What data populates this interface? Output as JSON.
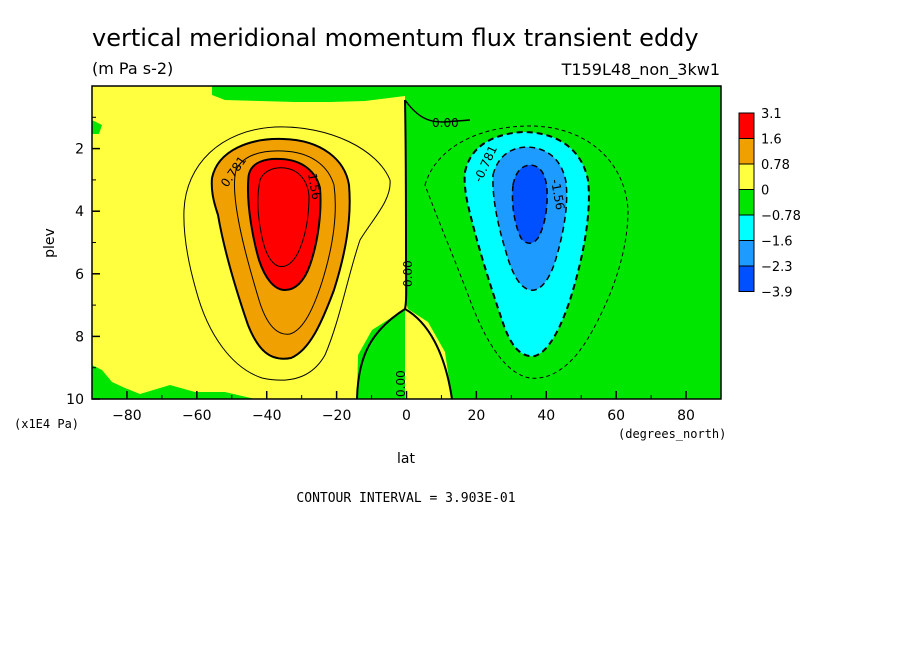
{
  "chart_data": {
    "type": "heatmap",
    "title": "vertical meridional momentum flux transient eddy",
    "subtitle": "(m Pa s-2)",
    "run_label": "T159L48_non_3kw1",
    "xlabel": "lat",
    "xunit": "(degrees_north)",
    "ylabel": "plev",
    "yunit": "(x1E4 Pa)",
    "xlim": [
      -90,
      90
    ],
    "ylim": [
      10,
      0
    ],
    "xticks": [
      -80,
      -60,
      -40,
      -20,
      0,
      20,
      40,
      60,
      80
    ],
    "yticks": [
      2,
      4,
      6,
      8,
      10
    ],
    "contour_interval_text": "CONTOUR INTERVAL = 3.903E-01",
    "contour_labels": [
      "0.00",
      "0.781",
      "1.56",
      "0.00",
      "0.00",
      "-0.781",
      "-1.56"
    ],
    "legend": {
      "labels": [
        "3.1",
        "1.6",
        "0.78",
        "0",
        "-0.78",
        "-1.6",
        "-2.3",
        "-3.9"
      ],
      "colors": [
        "#ff0000",
        "#f0a000",
        "#ffff40",
        "#00e600",
        "#00ffff",
        "#1e9bff",
        "#0050ff"
      ]
    },
    "fields": {
      "positive_max": {
        "lat": -35,
        "plev": 4.0,
        "approx_value": 3.0
      },
      "negative_min": {
        "lat": 35,
        "plev": 3.8,
        "approx_value": -2.5
      }
    }
  }
}
